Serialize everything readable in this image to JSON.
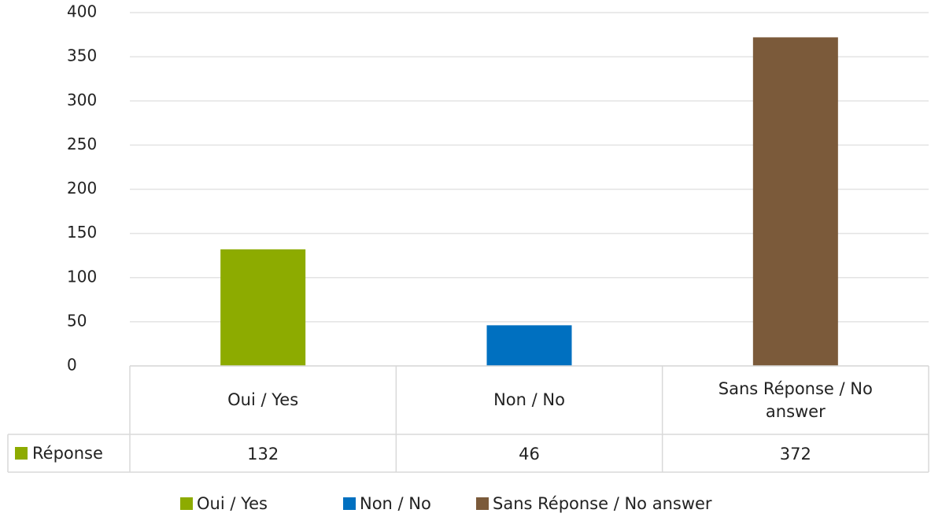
{
  "chart_data": {
    "type": "bar",
    "categories": [
      "Oui / Yes",
      "Non / No",
      "Sans Réponse / No answer"
    ],
    "series": [
      {
        "name": "Réponse",
        "values": [
          132,
          46,
          372
        ]
      }
    ],
    "colors": [
      "#8dab00",
      "#0070c0",
      "#7b5a3a"
    ],
    "ylim": [
      0,
      400
    ],
    "yticks": [
      0,
      50,
      100,
      150,
      200,
      250,
      300,
      350,
      400
    ],
    "grid": true,
    "legend": "bottom"
  }
}
